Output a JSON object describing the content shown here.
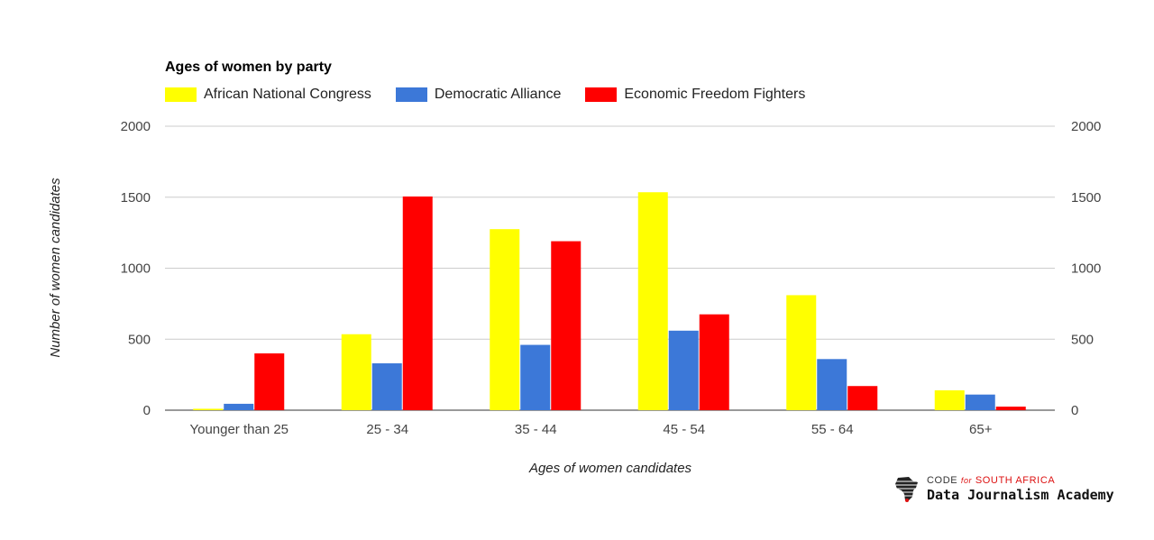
{
  "chart_data": {
    "type": "bar",
    "title": "Ages of women by party",
    "xlabel": "Ages of women candidates",
    "ylabel": "Number of women candidates",
    "categories": [
      "Younger than 25",
      "25 - 34",
      "35 - 44",
      "45 - 54",
      "55 - 64",
      "65+"
    ],
    "series": [
      {
        "name": "African National Congress",
        "color": "#ffff00",
        "values": [
          10,
          535,
          1275,
          1535,
          810,
          140
        ]
      },
      {
        "name": "Democratic Alliance",
        "color": "#3c78d8",
        "values": [
          45,
          330,
          460,
          560,
          360,
          110
        ]
      },
      {
        "name": "Economic Freedom Fighters",
        "color": "#ff0000",
        "values": [
          400,
          1505,
          1190,
          675,
          170,
          25
        ]
      }
    ],
    "ylim": [
      0,
      2000
    ],
    "yticks": [
      "0",
      "500",
      "1000",
      "1500",
      "2000"
    ],
    "grid": true,
    "legend_position": "top-left"
  },
  "branding": {
    "top_prefix": "CODE",
    "top_for": "for",
    "top_suffix": "SOUTH AFRICA",
    "bottom": "Data Journalism Academy",
    "logo_icon": "africa-map-icon"
  }
}
